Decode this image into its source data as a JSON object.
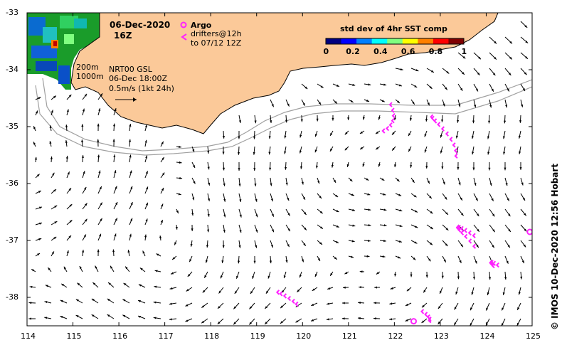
{
  "title": "06-Dec-2020",
  "time_label": "16Z",
  "legend": {
    "argo_label": "Argo",
    "drifters_line1": "drifters@12h",
    "drifters_line2": "to 07/12 12Z",
    "argo_color": "#ff22ff",
    "drifter_color": "#ff22ff"
  },
  "colorbar": {
    "title": "std dev of 4hr SST comp",
    "ticks": [
      "0",
      "0.2",
      "0.4",
      "0.6",
      "0.8",
      "1"
    ],
    "colors": [
      "#000080",
      "#0000ff",
      "#0080ff",
      "#00ffff",
      "#80ff80",
      "#ffff00",
      "#ff8000",
      "#ff0000",
      "#800000"
    ]
  },
  "isobaths": {
    "shallow": "200m",
    "deep": "1000m"
  },
  "source": {
    "product": "NRT00 GSL",
    "time": "06-Dec 18:00Z",
    "scale": "0.5m/s (1kt 24h)"
  },
  "credit": "© IMOS 10-Dec-2020 12:56 Hobart",
  "x_axis": {
    "ticks": [
      "114",
      "115",
      "116",
      "117",
      "118",
      "119",
      "120",
      "121",
      "122",
      "123",
      "124",
      "125"
    ]
  },
  "y_axis": {
    "ticks": [
      "-33",
      "-34",
      "-35",
      "-36",
      "-37",
      "-38"
    ]
  },
  "colors": {
    "land": "#fbc999",
    "isobath": "#a0a0a0",
    "coast": "#000000"
  },
  "drifters": [
    {
      "lon": 121.65,
      "lat": -35.1,
      "points": 7
    },
    {
      "lon": 123.3,
      "lat": -35.6,
      "points": 10
    },
    {
      "lon": 123.8,
      "lat": -37.2,
      "points": 12
    },
    {
      "lon": 124.2,
      "lat": -37.5,
      "points": 6
    },
    {
      "lon": 119.4,
      "lat": -37.9,
      "points": 6
    },
    {
      "lon": 122.5,
      "lat": -38.2,
      "points": 5
    }
  ],
  "argo_floats": [
    {
      "lon": 122.42,
      "lat": -38.42
    },
    {
      "lon": 124.95,
      "lat": -36.85
    }
  ]
}
